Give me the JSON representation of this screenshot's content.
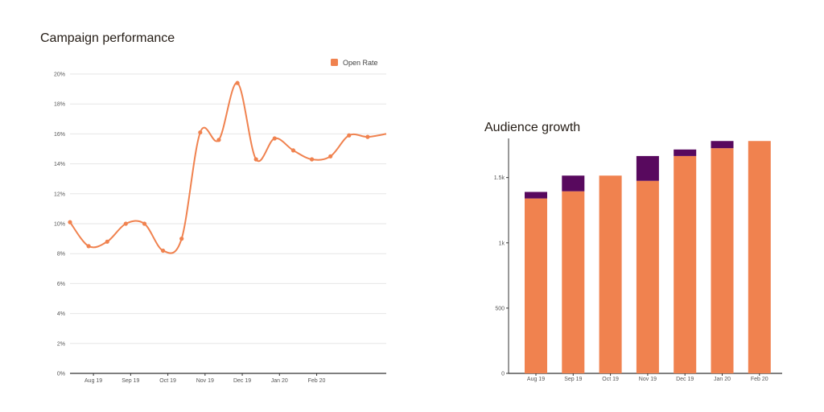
{
  "chart_data": [
    {
      "type": "line",
      "title": "Campaign performance",
      "legend": {
        "position": "top-right",
        "entries": [
          "Open Rate"
        ]
      },
      "colors": {
        "line": "#f0824f",
        "grid": "#e6e6e6",
        "axis": "#333333"
      },
      "x_tick_labels": [
        "Aug 19",
        "Sep 19",
        "Oct 19",
        "Nov 19",
        "Dec 19",
        "Jan 20",
        "Feb 20"
      ],
      "y_tick_labels": [
        "0%",
        "2%",
        "4%",
        "6%",
        "8%",
        "10%",
        "12%",
        "14%",
        "16%",
        "18%",
        "20%"
      ],
      "ylim": [
        0,
        20
      ],
      "grid": true,
      "series": [
        {
          "name": "Open Rate",
          "values": [
            10.1,
            8.5,
            8.8,
            10.0,
            10.0,
            8.2,
            9.0,
            16.1,
            15.6,
            19.4,
            14.3,
            15.7,
            14.9,
            14.3,
            14.5,
            15.9,
            15.8,
            16.0
          ]
        }
      ]
    },
    {
      "type": "bar",
      "stacked": true,
      "title": "Audience growth",
      "colors": {
        "base": "#f0824f",
        "top": "#58095e",
        "axis": "#333333"
      },
      "categories": [
        "Aug 19",
        "Sep 19",
        "Oct 19",
        "Nov 19",
        "Dec 19",
        "Jan 20",
        "Feb 20"
      ],
      "y_tick_labels": [
        "0",
        "500",
        "1k",
        "1.5k"
      ],
      "ylim": [
        0,
        1800
      ],
      "grid": false,
      "series": [
        {
          "values": [
            1340,
            1395,
            1515,
            1475,
            1665,
            1725,
            1780
          ]
        },
        {
          "values": [
            50,
            120,
            0,
            190,
            50,
            55,
            0
          ]
        }
      ]
    }
  ]
}
